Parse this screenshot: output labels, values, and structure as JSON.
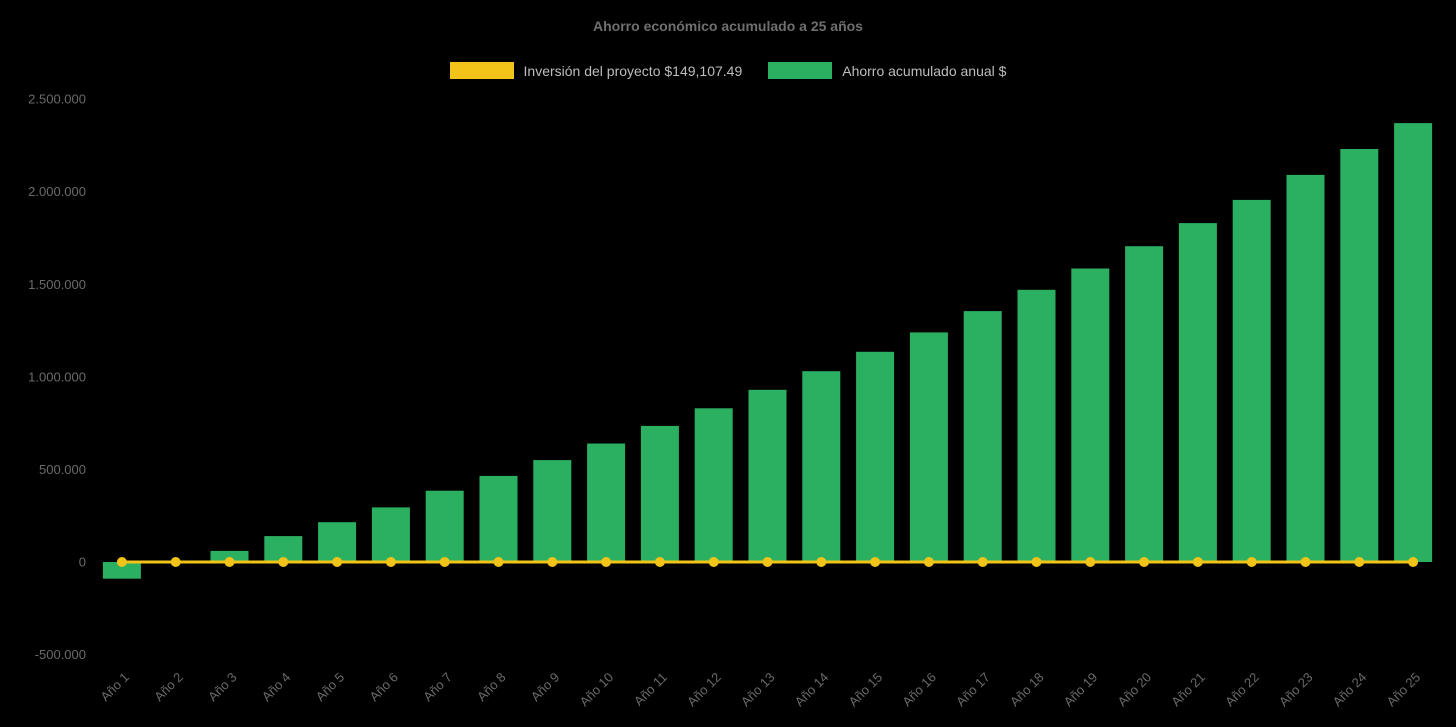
{
  "chart_data": {
    "type": "bar",
    "title": "Ahorro económico acumulado a 25 años",
    "categories": [
      "Año 1",
      "Año 2",
      "Año 3",
      "Año 4",
      "Año 5",
      "Año 6",
      "Año 7",
      "Año 8",
      "Año 9",
      "Año 10",
      "Año 11",
      "Año 12",
      "Año 13",
      "Año 14",
      "Año 15",
      "Año 16",
      "Año 17",
      "Año 18",
      "Año 19",
      "Año 20",
      "Año 21",
      "Año 22",
      "Año 23",
      "Año 24",
      "Año 25"
    ],
    "series": [
      {
        "name": "Inversión del proyecto $149,107.49",
        "type": "line",
        "color": "#f2c318",
        "marker": "circle",
        "constant_value": 0
      },
      {
        "name": "Ahorro acumulado anual $",
        "type": "column",
        "color": "#2bb062",
        "values": [
          -90000,
          5000,
          60000,
          140000,
          215000,
          295000,
          385000,
          465000,
          550000,
          640000,
          735000,
          830000,
          930000,
          1030000,
          1135000,
          1240000,
          1355000,
          1470000,
          1585000,
          1705000,
          1830000,
          1955000,
          2090000,
          2230000,
          2370000
        ]
      }
    ],
    "xlabel": "",
    "ylabel": "",
    "yaxis": {
      "min": -500000,
      "max": 2500000,
      "tick_interval": 500000,
      "tick_labels": [
        "-500.000",
        "0",
        "500.000",
        "1.000.000",
        "1.500.000",
        "2.000.000",
        "2.500.000"
      ]
    },
    "x_label_rotation": -45,
    "legend_position": "top",
    "grid": false,
    "background": "#000000"
  },
  "colors": {
    "background": "#000000",
    "bar_green": "#2bb062",
    "line_yellow": "#f2c318",
    "title_text": "#6f6f6f",
    "axis_text": "#6a6a6a",
    "legend_text": "#bdbdbd"
  }
}
